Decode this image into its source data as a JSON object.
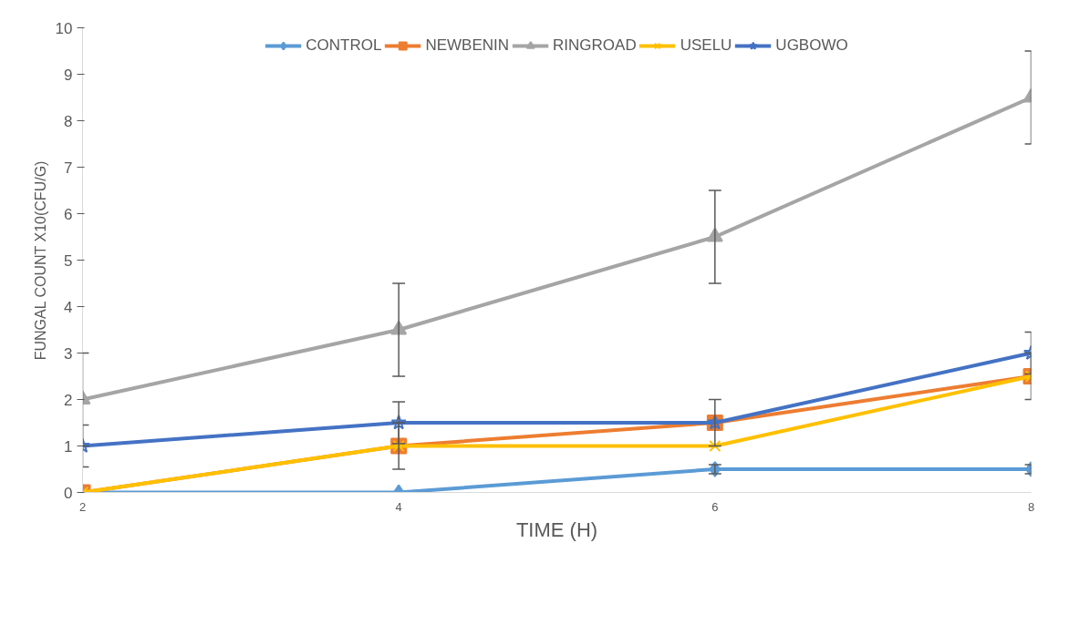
{
  "chart_data": {
    "type": "line",
    "xlabel": "TIME (H)",
    "ylabel": "FUNGAL COUNT X10(CFU/G)",
    "x": [
      2,
      4,
      6,
      8
    ],
    "xlim": [
      2,
      8
    ],
    "xticks": [
      2,
      4,
      6,
      8
    ],
    "ylim": [
      0,
      10
    ],
    "yticks": [
      0,
      1,
      2,
      3,
      4,
      5,
      6,
      7,
      8,
      9,
      10
    ],
    "grid": false,
    "legend": "top",
    "line_style": "solid",
    "series": [
      {
        "name": "CONTROL",
        "color": "#5b9bd5",
        "marker": "diamond",
        "values": [
          0,
          0,
          0.5,
          0.5
        ],
        "errors": [
          null,
          null,
          0.1,
          0.1
        ]
      },
      {
        "name": "NEWBENIN",
        "color": "#ed7d31",
        "marker": "square",
        "values": [
          0,
          1,
          1.5,
          2.5
        ],
        "errors": [
          null,
          0.5,
          0.5,
          0.5
        ]
      },
      {
        "name": "RINGROAD",
        "color": "#a5a5a5",
        "marker": "triangle",
        "values": [
          2,
          3.5,
          5.5,
          8.5
        ],
        "errors": [
          1,
          1,
          1,
          1
        ]
      },
      {
        "name": "USELU",
        "color": "#ffc000",
        "marker": "cross",
        "values": [
          0,
          1,
          1,
          2.5
        ]
      },
      {
        "name": "UGBOWO",
        "color": "#4472c4",
        "marker": "star",
        "values": [
          1,
          1.5,
          1.5,
          3
        ],
        "errors": [
          0.45,
          0.45,
          null,
          0.45
        ]
      }
    ]
  }
}
